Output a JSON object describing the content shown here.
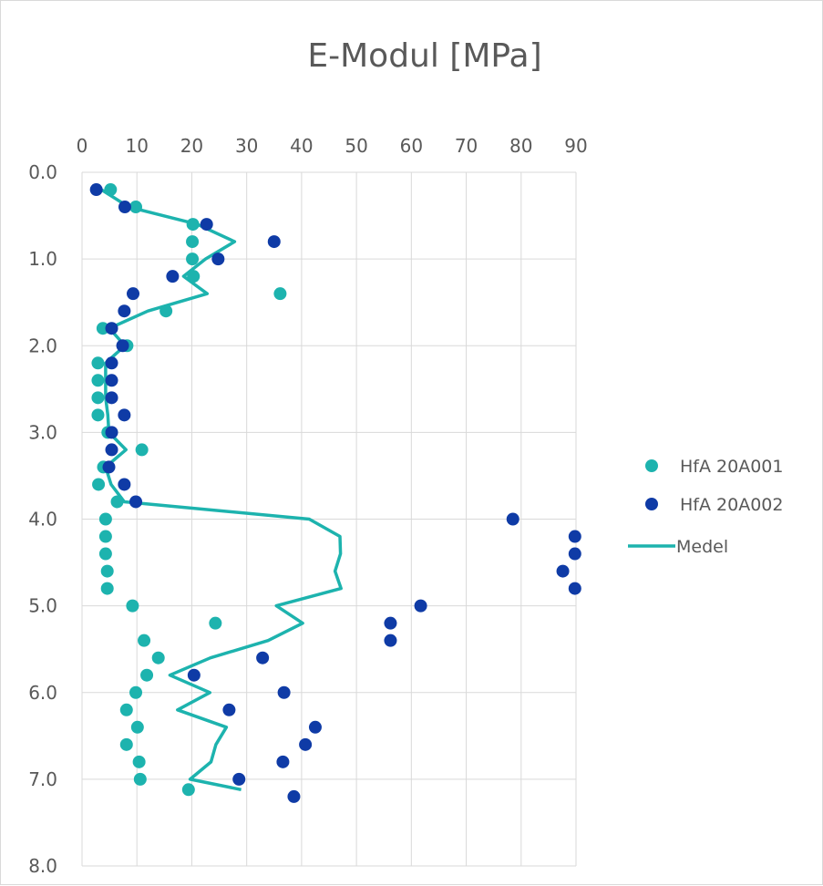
{
  "chart_data": {
    "type": "scatter",
    "title": "E-Modul [MPa]",
    "x_axis": {
      "position": "top",
      "min": 0,
      "max": 90,
      "ticks": [
        0,
        10,
        20,
        30,
        40,
        50,
        60,
        70,
        80,
        90
      ],
      "tick_labels": [
        "0",
        "10",
        "20",
        "30",
        "40",
        "50",
        "60",
        "70",
        "80",
        "90"
      ]
    },
    "y_axis": {
      "reversed": true,
      "min": 0.0,
      "max": 8.0,
      "ticks": [
        0,
        1,
        2,
        3,
        4,
        5,
        6,
        7,
        8
      ],
      "tick_labels": [
        "0.0",
        "1.0",
        "2.0",
        "3.0",
        "4.0",
        "5.0",
        "6.0",
        "7.0",
        "8.0"
      ]
    },
    "grid": true,
    "legend_position": "right",
    "series": [
      {
        "name": "HfA 20A001",
        "kind": "scatter",
        "color": "#1db3ae",
        "points": [
          [
            5.2,
            0.2
          ],
          [
            9.8,
            0.4
          ],
          [
            20.2,
            0.6
          ],
          [
            20.1,
            0.8
          ],
          [
            20.1,
            1.0
          ],
          [
            20.3,
            1.2
          ],
          [
            36.1,
            1.4
          ],
          [
            15.3,
            1.6
          ],
          [
            3.8,
            1.8
          ],
          [
            8.2,
            2.0
          ],
          [
            2.9,
            2.2
          ],
          [
            2.9,
            2.4
          ],
          [
            2.9,
            2.6
          ],
          [
            2.9,
            2.8
          ],
          [
            4.7,
            3.0
          ],
          [
            10.9,
            3.2
          ],
          [
            3.9,
            3.4
          ],
          [
            3.0,
            3.6
          ],
          [
            6.4,
            3.8
          ],
          [
            4.3,
            4.0
          ],
          [
            4.3,
            4.2
          ],
          [
            4.3,
            4.4
          ],
          [
            4.6,
            4.6
          ],
          [
            4.6,
            4.8
          ],
          [
            9.2,
            5.0
          ],
          [
            24.3,
            5.2
          ],
          [
            11.3,
            5.4
          ],
          [
            13.9,
            5.6
          ],
          [
            11.8,
            5.8
          ],
          [
            9.8,
            6.0
          ],
          [
            8.1,
            6.2
          ],
          [
            10.1,
            6.4
          ],
          [
            8.1,
            6.6
          ],
          [
            10.4,
            6.8
          ],
          [
            10.6,
            7.0
          ],
          [
            19.4,
            7.12
          ]
        ]
      },
      {
        "name": "HfA 20A002",
        "kind": "scatter",
        "color": "#0f3ba6",
        "points": [
          [
            2.6,
            0.2
          ],
          [
            7.8,
            0.4
          ],
          [
            22.7,
            0.6
          ],
          [
            35.0,
            0.8
          ],
          [
            24.8,
            1.0
          ],
          [
            16.5,
            1.2
          ],
          [
            9.3,
            1.4
          ],
          [
            7.7,
            1.6
          ],
          [
            5.4,
            1.8
          ],
          [
            7.4,
            2.0
          ],
          [
            5.4,
            2.2
          ],
          [
            5.4,
            2.4
          ],
          [
            5.4,
            2.6
          ],
          [
            7.7,
            2.8
          ],
          [
            5.4,
            3.0
          ],
          [
            5.4,
            3.2
          ],
          [
            4.9,
            3.4
          ],
          [
            7.7,
            3.6
          ],
          [
            9.8,
            3.8
          ],
          [
            78.5,
            4.0
          ],
          [
            89.8,
            4.2
          ],
          [
            89.8,
            4.4
          ],
          [
            87.6,
            4.6
          ],
          [
            89.8,
            4.8
          ],
          [
            61.7,
            5.0
          ],
          [
            56.2,
            5.2
          ],
          [
            56.2,
            5.4
          ],
          [
            32.9,
            5.6
          ],
          [
            20.4,
            5.8
          ],
          [
            36.8,
            6.0
          ],
          [
            26.8,
            6.2
          ],
          [
            42.5,
            6.4
          ],
          [
            40.7,
            6.6
          ],
          [
            36.6,
            6.8
          ],
          [
            28.6,
            7.0
          ],
          [
            38.6,
            7.2
          ]
        ]
      },
      {
        "name": "Medel",
        "kind": "line",
        "color": "#1db3ae",
        "points": [
          [
            3.5,
            0.2
          ],
          [
            8.5,
            0.4
          ],
          [
            21.0,
            0.6
          ],
          [
            27.8,
            0.8
          ],
          [
            22.5,
            1.0
          ],
          [
            18.5,
            1.2
          ],
          [
            22.8,
            1.4
          ],
          [
            12.0,
            1.6
          ],
          [
            5.0,
            1.8
          ],
          [
            7.8,
            2.0
          ],
          [
            4.3,
            2.2
          ],
          [
            4.3,
            2.4
          ],
          [
            4.3,
            2.6
          ],
          [
            4.7,
            2.8
          ],
          [
            4.9,
            3.0
          ],
          [
            8.0,
            3.2
          ],
          [
            4.3,
            3.4
          ],
          [
            5.3,
            3.6
          ],
          [
            7.7,
            3.8
          ],
          [
            41.4,
            4.0
          ],
          [
            47.0,
            4.2
          ],
          [
            47.1,
            4.4
          ],
          [
            46.1,
            4.6
          ],
          [
            47.2,
            4.8
          ],
          [
            35.4,
            5.0
          ],
          [
            40.2,
            5.2
          ],
          [
            33.9,
            5.4
          ],
          [
            23.4,
            5.6
          ],
          [
            16.0,
            5.8
          ],
          [
            23.3,
            6.0
          ],
          [
            17.4,
            6.2
          ],
          [
            26.3,
            6.4
          ],
          [
            24.4,
            6.6
          ],
          [
            23.5,
            6.8
          ],
          [
            19.7,
            7.0
          ],
          [
            29.0,
            7.12
          ]
        ]
      }
    ]
  }
}
